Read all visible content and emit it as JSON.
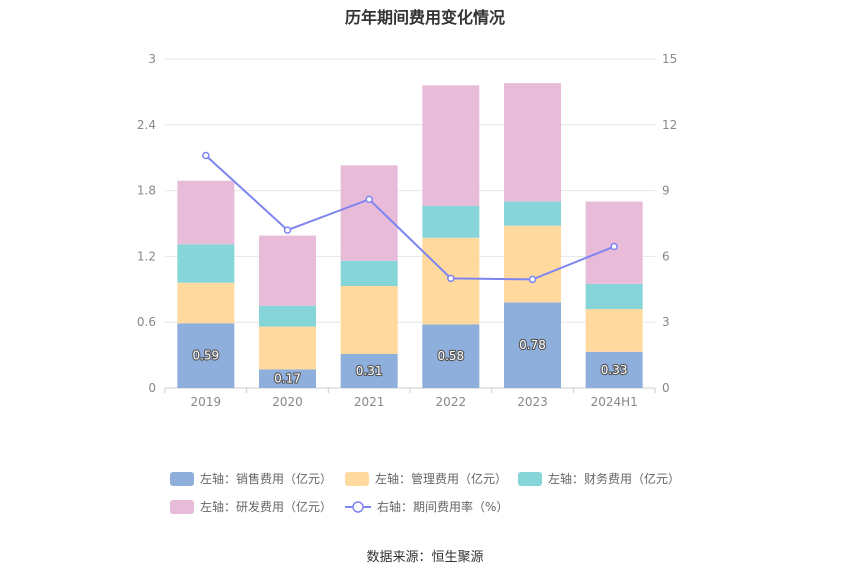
{
  "chart_data": {
    "type": "bar",
    "title": "历年期间费用变化情况",
    "categories": [
      "2019",
      "2020",
      "2021",
      "2022",
      "2023",
      "2024H1"
    ],
    "stacked": true,
    "series": [
      {
        "name": "左轴：销售费用（亿元）",
        "axis": "left",
        "color": "#8eaedb",
        "values": [
          0.59,
          0.17,
          0.31,
          0.58,
          0.78,
          0.33
        ],
        "labels": [
          "0.59",
          "0.17",
          "0.31",
          "0.58",
          "0.78",
          "0.33"
        ]
      },
      {
        "name": "左轴：管理费用（亿元）",
        "axis": "left",
        "color": "#ffd99e",
        "values": [
          0.37,
          0.39,
          0.62,
          0.79,
          0.7,
          0.39
        ]
      },
      {
        "name": "左轴：财务费用（亿元）",
        "axis": "left",
        "color": "#86d6d9",
        "values": [
          0.35,
          0.19,
          0.23,
          0.29,
          0.22,
          0.23
        ]
      },
      {
        "name": "左轴：研发费用（亿元）",
        "axis": "left",
        "color": "#e8bbd9",
        "values": [
          0.58,
          0.64,
          0.87,
          1.1,
          1.08,
          0.75
        ]
      },
      {
        "name": "右轴：期间费用率（%）",
        "axis": "right",
        "type": "line",
        "color": "#7f85f0",
        "values": [
          10.6,
          7.2,
          8.6,
          5.0,
          4.95,
          6.45
        ]
      }
    ],
    "y_left": {
      "min": 0,
      "max": 3,
      "ticks": [
        "0",
        "0.6",
        "1.2",
        "1.8",
        "2.4",
        "3"
      ]
    },
    "y_right": {
      "min": 0,
      "max": 15,
      "ticks": [
        "0",
        "3",
        "6",
        "9",
        "12",
        "15"
      ]
    },
    "grid": true,
    "legend_position": "bottom"
  },
  "source": "数据来源：恒生聚源"
}
